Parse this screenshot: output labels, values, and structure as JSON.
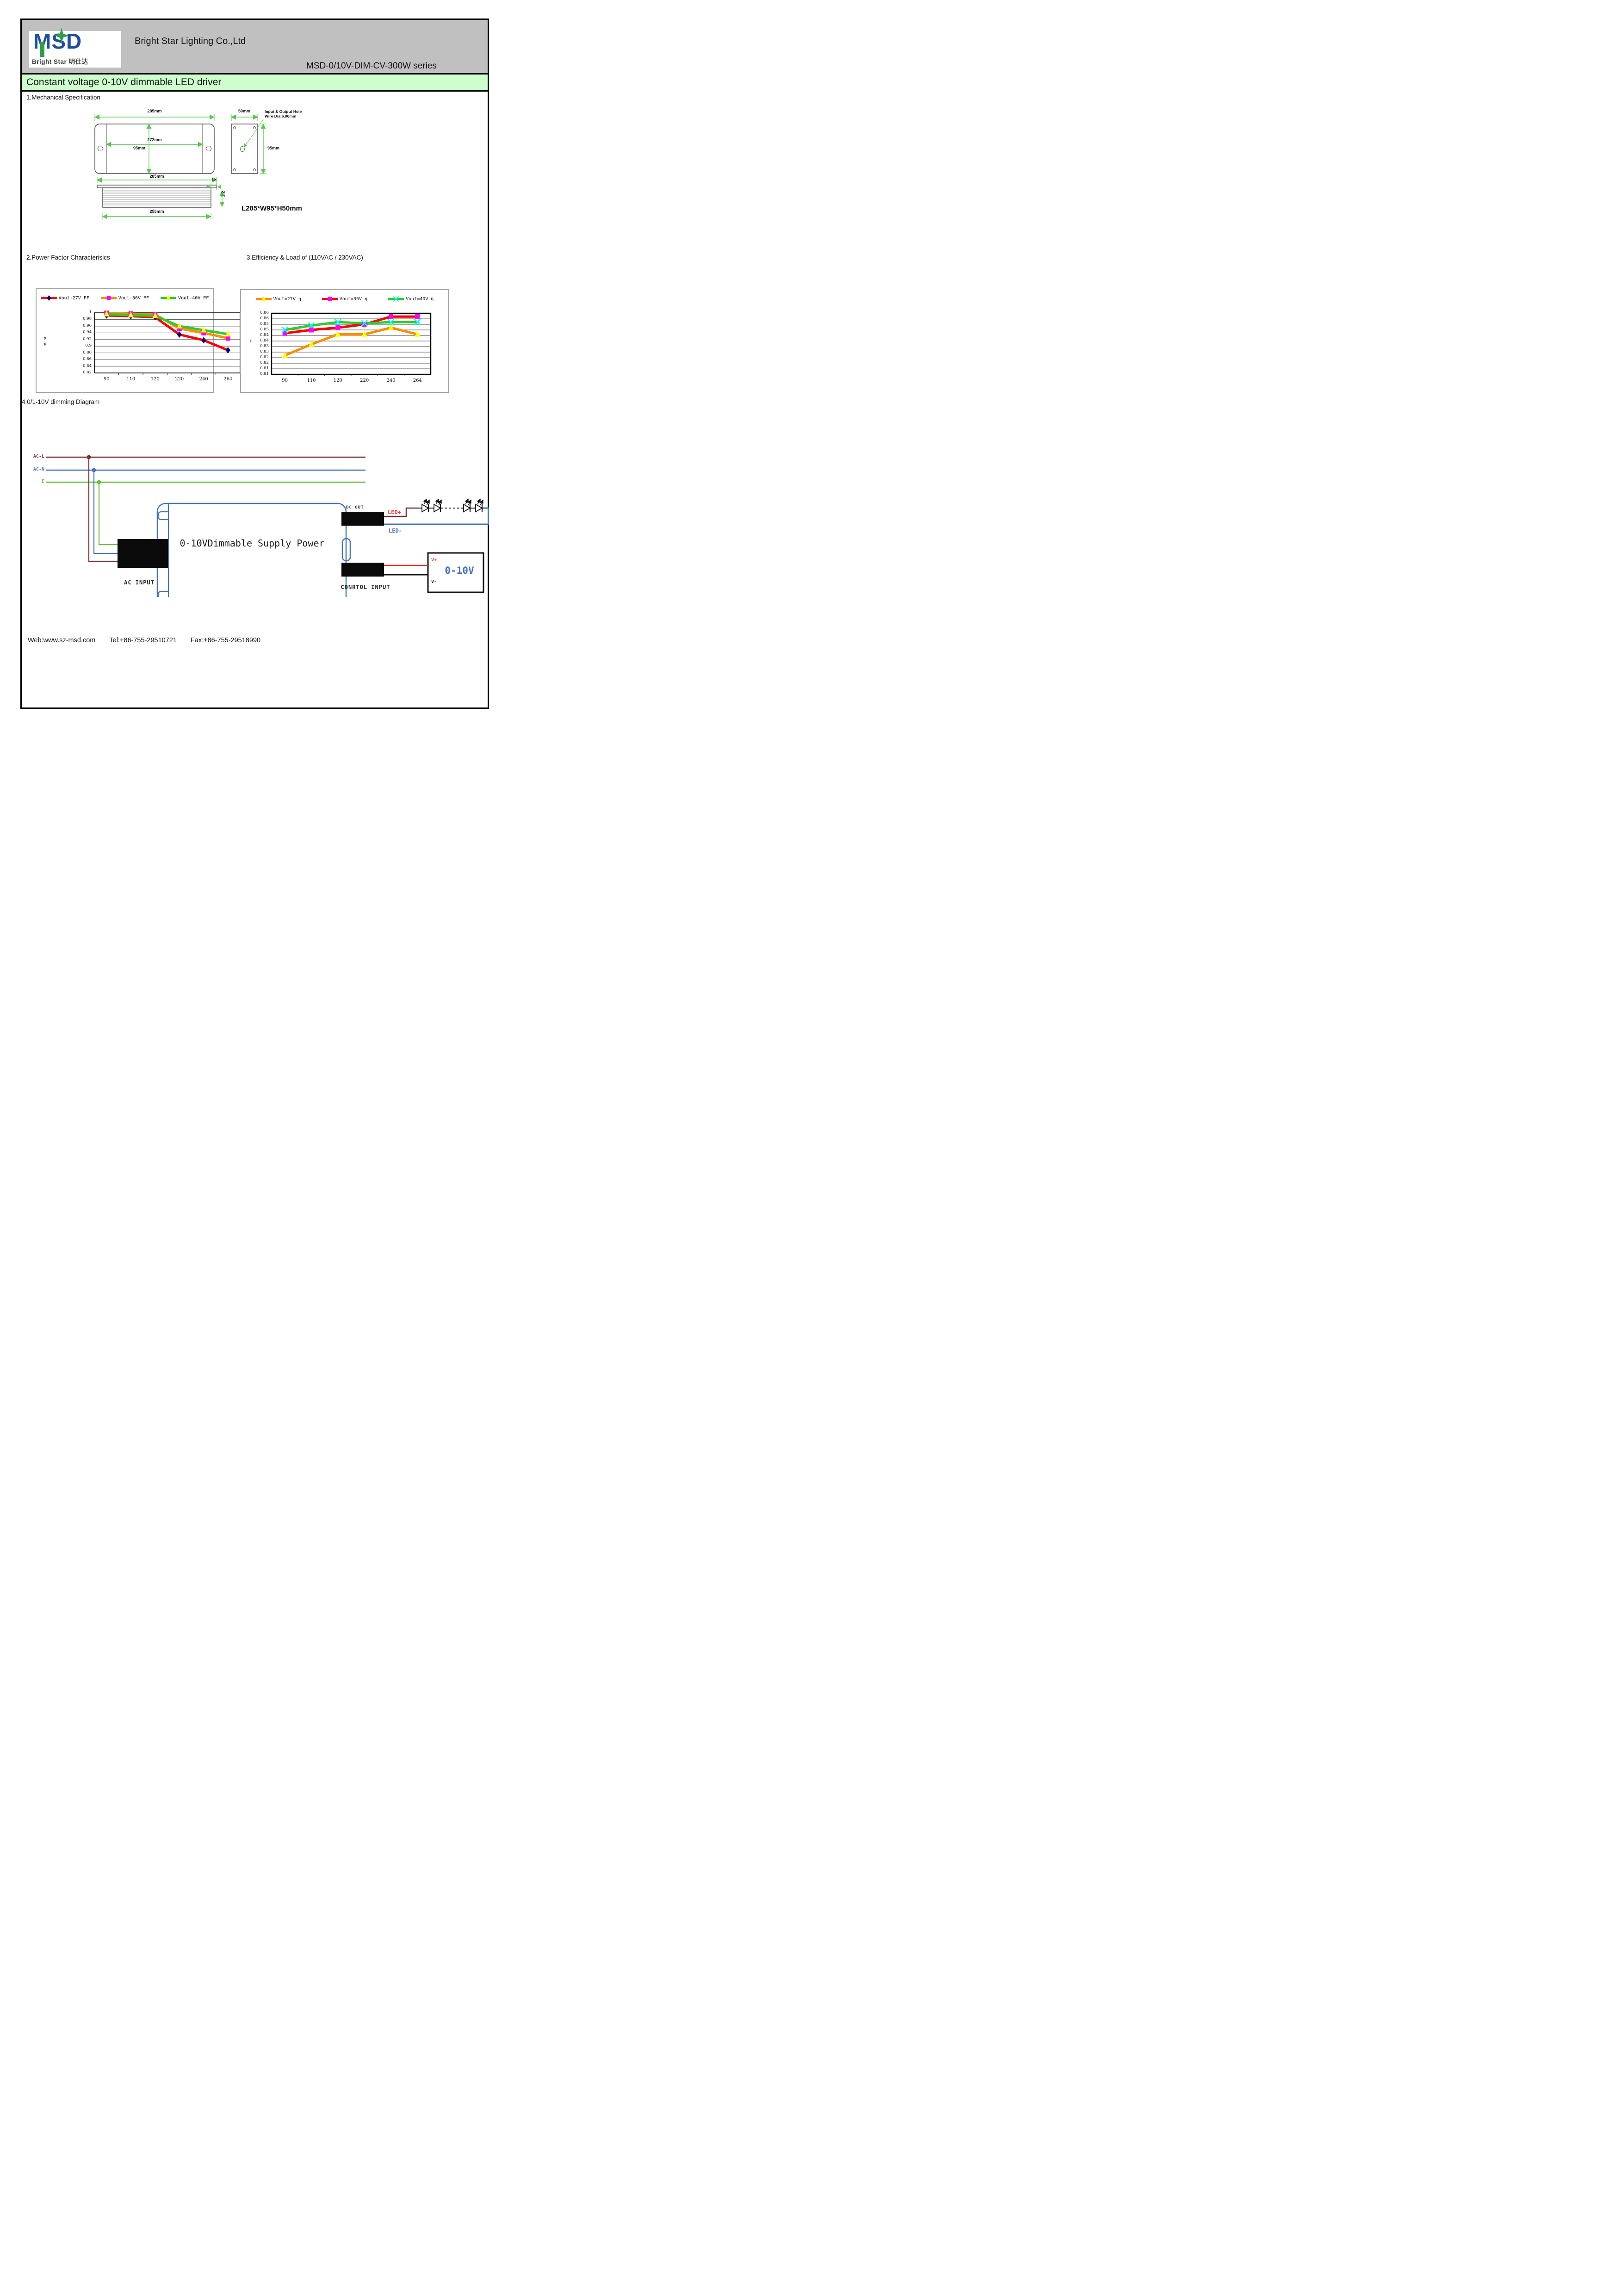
{
  "logo": {
    "msd": "MSD",
    "sub": "Bright Star 明仕达"
  },
  "header": {
    "company": "Bright Star Lighting Co.,Ltd",
    "series": "MSD-0/10V-DIM-CV-300W series"
  },
  "title_bar": {
    "text": "Constant voltage 0-10V dimmable LED driver"
  },
  "sections": {
    "s1": "1.Mechanical Specification",
    "s2": "2.Power Factor Characterisics",
    "s3": "3.Efficiency & Load of (110VAC / 230VAC)",
    "s4": "4.0/1-10V dimming Diagram"
  },
  "mech": {
    "dim_top_width": "285mm",
    "dim_inner_width": "272mm",
    "dim_height": "95mm",
    "dim_side_width": "50mm",
    "dim_side_height": "95mm",
    "hole_note_line1": "Input & Output Hole",
    "hole_note_line2": "Wire Dia:6.00mm",
    "dim_bottom_width": "285mm",
    "dim_flange": "15",
    "dim_thickness": "1.2",
    "dim_bottom_inner": "255mm",
    "overall_size": "L285*W95*H50mm"
  },
  "colors": {
    "header_bg": "#c0c0c0",
    "title_bar_bg": "#ccffcc",
    "logo_blue": "#1d4f9e",
    "logo_green": "#2e9e46",
    "dimension_green": "#57c84a"
  },
  "chart_data": [
    {
      "type": "line",
      "categories": [
        "90",
        "110",
        "120",
        "220",
        "240",
        "264"
      ],
      "y_ticks": [
        "1",
        "0.98",
        "0.96",
        "0.94",
        "0.92",
        "0.9",
        "0.88",
        "0.86",
        "0.84",
        "0.82"
      ],
      "ylim": [
        0.82,
        1.0
      ],
      "y_axis_label": "PF",
      "y_axis_label_lines": [
        "P",
        "F"
      ],
      "grid": true,
      "legend_position": "top",
      "series": [
        {
          "name": "Vout-27V PF",
          "line_color": "#ff0000",
          "marker": "diamond",
          "marker_color": "#000080",
          "values": [
            0.992,
            0.99,
            0.987,
            0.935,
            0.918,
            0.888
          ]
        },
        {
          "name": "Vout-36V PF",
          "line_color": "#ff8c00",
          "marker": "square",
          "marker_color": "#ff00ff",
          "values": [
            0.999,
            0.997,
            0.995,
            0.953,
            0.94,
            0.924
          ]
        },
        {
          "name": "Vout-40V PF",
          "line_color": "#2ecc2e",
          "marker": "triangle",
          "marker_color": "#ffff00",
          "values": [
            0.996,
            0.993,
            0.991,
            0.96,
            0.948,
            0.936
          ]
        }
      ]
    },
    {
      "type": "line",
      "categories": [
        "90",
        "110",
        "120",
        "220",
        "240",
        "264"
      ],
      "y_ticks": [
        "0.86",
        "0.86",
        "0.85",
        "0.85",
        "0.84",
        "0.84",
        "0.83",
        "0.83",
        "0.82",
        "0.82",
        "0.81",
        "0.81"
      ],
      "ylim": [
        0.805,
        0.86
      ],
      "y_axis_label": "η",
      "y_axis_label_lines": [
        "η"
      ],
      "grid": true,
      "legend_position": "top",
      "series": [
        {
          "name": "Vout=27V  η",
          "line_color": "#ff8c00",
          "marker": "triangle",
          "marker_color": "#ffff00",
          "values": [
            0.822,
            0.832,
            0.841,
            0.841,
            0.847,
            0.841
          ]
        },
        {
          "name": "Vout=36V  η",
          "line_color": "#ff0000",
          "marker": "square",
          "marker_color": "#ff00ff",
          "values": [
            0.842,
            0.845,
            0.847,
            0.85,
            0.857,
            0.857
          ]
        },
        {
          "name": "Vout=40V  η",
          "line_color": "#2ecc2e",
          "marker": "x",
          "marker_color": "#00ffff",
          "values": [
            0.845,
            0.849,
            0.852,
            0.851,
            0.852,
            0.852
          ]
        }
      ]
    }
  ],
  "diagram": {
    "ac_l": "AC-L",
    "ac_n": "AC-N",
    "earth": "E",
    "box_label": "0-10VDimmable Supply Power",
    "ac_input": "AC INPUT",
    "dc_out": "DC OUT",
    "control_input": "CONRTOL INPUT",
    "led_plus": "LED+",
    "led_minus": "LED-",
    "v_plus": "V+",
    "v_minus": "V-",
    "dimmer_label": "0-10V",
    "colors": {
      "line_wire": "#7d3030",
      "neutral_wire": "#4472c4",
      "earth_wire": "#6abf3a",
      "dc_plus_wire": "#7d2b2b",
      "dc_minus_wire": "#4472c4",
      "control_plus_wire": "#ff2222",
      "control_minus_wire": "#111111",
      "box_outline": "#4472c4",
      "label_red": "#ff3333",
      "label_blue": "#4472c4"
    }
  },
  "footer": {
    "web": "Web:www.sz-msd.com",
    "tel": "Tel:+86-755-29510721",
    "fax": "Fax:+86-755-29518990"
  }
}
